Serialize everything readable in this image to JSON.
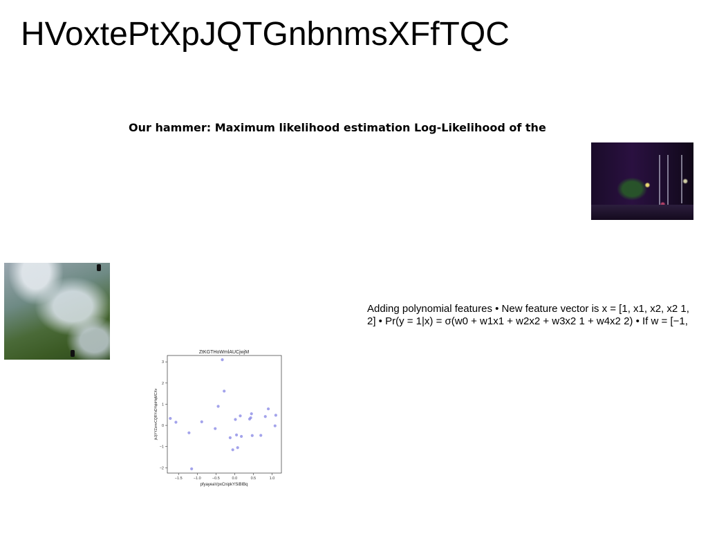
{
  "title": "HVoxtePtXpJQTGnbnmsXFfTQC",
  "subtitle": "Our hammer: Maximum likelihood estimation Log-Likelihood of the",
  "body_lines": [
    "Adding polynomial features • New feature vector is x = [1, x1, x2, x2 1,",
    "2] • Pr(y = 1|x) = σ(w0 + w1x1 + w2x2 + w3x2 1 + w4x2 2) • If w = [−1,"
  ],
  "images": {
    "street_photo": "night-street-photo",
    "sea_photo": "aerial-surf-photo"
  },
  "chart_data": {
    "type": "scatter",
    "title": "ZtKGTHoWmlAUCjwjM",
    "xlabel": "pfyayeaVpxCnipkYSiBIBq",
    "ylabel": "jkJjYYZzmrCQRYxDYqbHqMCXv",
    "xlim": [
      -1.8,
      1.25
    ],
    "ylim": [
      -2.25,
      3.3
    ],
    "xticks": [
      -1.5,
      -1.0,
      -0.5,
      0.0,
      0.5,
      1.0
    ],
    "yticks": [
      -2,
      -1,
      0,
      1,
      2,
      3
    ],
    "xtick_labels": [
      "−1.5",
      "−1.0",
      "−0.5",
      "0.0",
      "0.5",
      "1.0"
    ],
    "ytick_labels": [
      "−2",
      "−1",
      "0",
      "1",
      "2",
      "3"
    ],
    "point_color": "#8c8ce6",
    "points": [
      {
        "x": -1.72,
        "y": 0.33
      },
      {
        "x": -1.57,
        "y": 0.15
      },
      {
        "x": -1.22,
        "y": -0.35
      },
      {
        "x": -1.15,
        "y": -2.05
      },
      {
        "x": -0.88,
        "y": 0.17
      },
      {
        "x": -0.52,
        "y": -0.15
      },
      {
        "x": -0.44,
        "y": 0.9
      },
      {
        "x": -0.33,
        "y": 3.1
      },
      {
        "x": -0.28,
        "y": 1.62
      },
      {
        "x": -0.12,
        "y": -0.58
      },
      {
        "x": -0.05,
        "y": -1.15
      },
      {
        "x": 0.02,
        "y": 0.28
      },
      {
        "x": 0.05,
        "y": -0.45
      },
      {
        "x": 0.08,
        "y": -1.05
      },
      {
        "x": 0.15,
        "y": 0.45
      },
      {
        "x": 0.18,
        "y": -0.52
      },
      {
        "x": 0.4,
        "y": 0.3
      },
      {
        "x": 0.43,
        "y": 0.36
      },
      {
        "x": 0.45,
        "y": 0.55
      },
      {
        "x": 0.47,
        "y": -0.48
      },
      {
        "x": 0.7,
        "y": -0.47
      },
      {
        "x": 0.82,
        "y": 0.42
      },
      {
        "x": 0.9,
        "y": 0.78
      },
      {
        "x": 1.08,
        "y": -0.02
      },
      {
        "x": 1.1,
        "y": 0.48
      }
    ]
  }
}
